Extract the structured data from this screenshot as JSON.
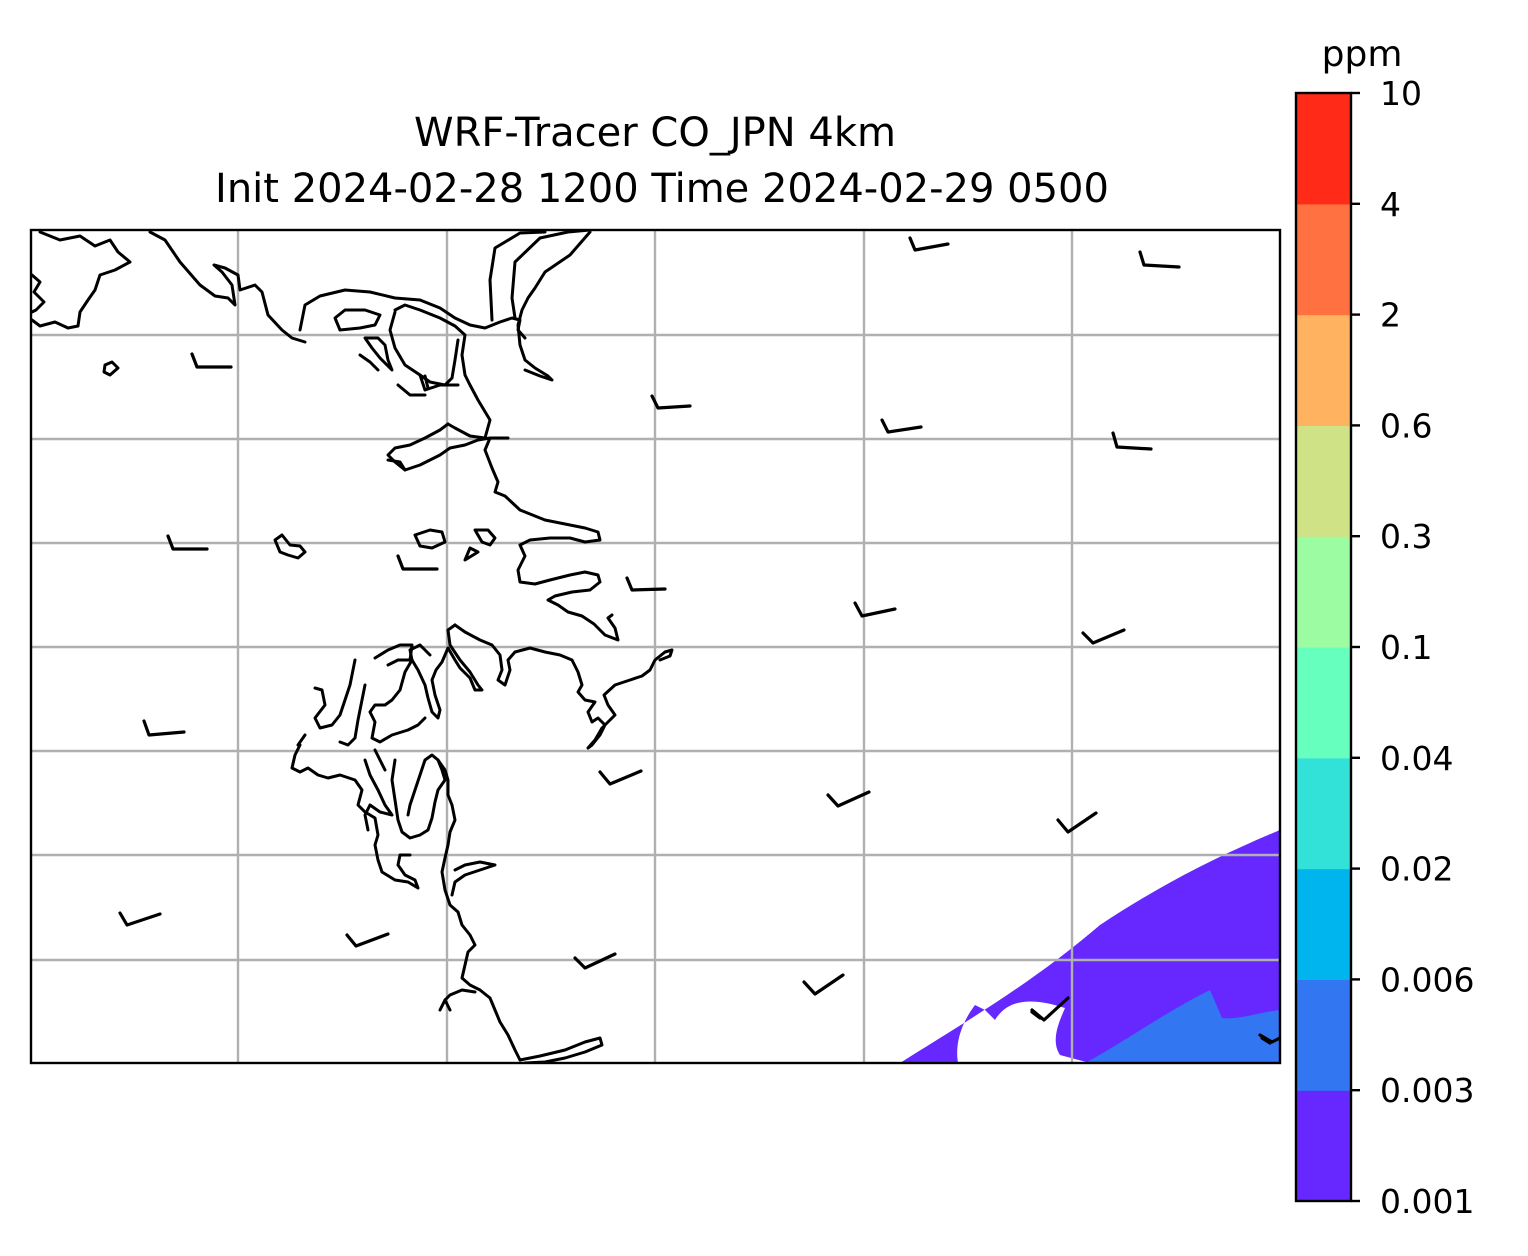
{
  "title": {
    "line1": "WRF-Tracer CO_JPN 4km",
    "line2": "Init 2024-02-28 1200 Time 2024-02-29 0500"
  },
  "colorbar": {
    "unit": "ppm",
    "levels": [
      "0.001",
      "0.003",
      "0.006",
      "0.02",
      "0.04",
      "0.1",
      "0.3",
      "0.6",
      "2",
      "4",
      "10"
    ],
    "colors": [
      "#6628ff",
      "#3276f2",
      "#00b5ee",
      "#32e1d8",
      "#67ffbe",
      "#9bfca1",
      "#d0e286",
      "#ffb361",
      "#ff7140",
      "#ff2a18"
    ]
  },
  "map": {
    "background": "#ffffff",
    "gridlines": true,
    "coastline_color": "#000000",
    "concentration_fields": [
      {
        "level": "0.001-0.003",
        "color": "#6628ff"
      },
      {
        "level": "0.003-0.006",
        "color": "#3276f2"
      }
    ],
    "wind_barbs": "black"
  }
}
